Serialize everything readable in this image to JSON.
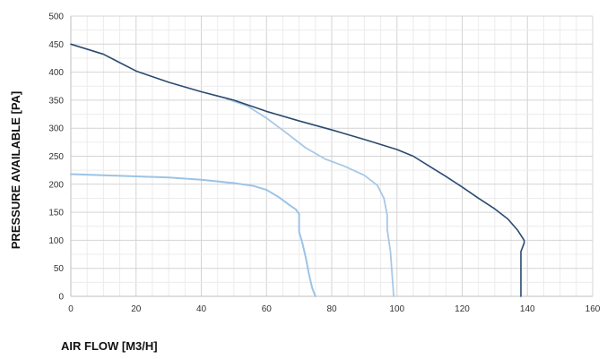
{
  "chart_data": {
    "type": "line",
    "title": "",
    "xlabel": "AIR FLOW [M3/H]",
    "ylabel": "PRESSURE AVAILABLE [PA]",
    "xlim": [
      0,
      160
    ],
    "ylim": [
      0,
      500
    ],
    "xticks": [
      0,
      20,
      40,
      60,
      80,
      100,
      120,
      140,
      160
    ],
    "yticks": [
      0,
      50,
      100,
      150,
      200,
      250,
      300,
      350,
      400,
      450,
      500
    ],
    "grid": true,
    "legend": false,
    "series": [
      {
        "color": "#9cc3e6",
        "width": 2,
        "points": [
          [
            0,
            218
          ],
          [
            10,
            216
          ],
          [
            20,
            214
          ],
          [
            30,
            212
          ],
          [
            40,
            208
          ],
          [
            50,
            202
          ],
          [
            56,
            197
          ],
          [
            60,
            190
          ],
          [
            64,
            176
          ],
          [
            67,
            163
          ],
          [
            69,
            155
          ],
          [
            70,
            147
          ],
          [
            70,
            140
          ],
          [
            70,
            115
          ],
          [
            71,
            95
          ],
          [
            72,
            70
          ],
          [
            73,
            40
          ],
          [
            74,
            15
          ],
          [
            75,
            0
          ]
        ]
      },
      {
        "color": "#a8c8e6",
        "width": 1.8,
        "points": [
          [
            48,
            352
          ],
          [
            54,
            340
          ],
          [
            60,
            318
          ],
          [
            66,
            292
          ],
          [
            72,
            265
          ],
          [
            78,
            245
          ],
          [
            84,
            232
          ],
          [
            90,
            216
          ],
          [
            94,
            198
          ],
          [
            96,
            175
          ],
          [
            97,
            145
          ],
          [
            97,
            120
          ],
          [
            98,
            80
          ],
          [
            98.5,
            40
          ],
          [
            99,
            0
          ]
        ]
      },
      {
        "color": "#2b4a70",
        "width": 1.6,
        "points": [
          [
            0,
            450
          ],
          [
            10,
            432
          ],
          [
            20,
            402
          ],
          [
            30,
            382
          ],
          [
            40,
            365
          ],
          [
            50,
            350
          ],
          [
            60,
            330
          ],
          [
            70,
            313
          ],
          [
            80,
            297
          ],
          [
            90,
            280
          ],
          [
            100,
            262
          ],
          [
            105,
            250
          ],
          [
            110,
            232
          ],
          [
            115,
            214
          ],
          [
            120,
            195
          ],
          [
            125,
            175
          ],
          [
            130,
            156
          ],
          [
            134,
            138
          ],
          [
            137,
            118
          ],
          [
            139,
            100
          ],
          [
            139,
            95
          ],
          [
            138,
            80
          ],
          [
            138,
            65
          ],
          [
            138,
            0
          ]
        ]
      }
    ]
  }
}
